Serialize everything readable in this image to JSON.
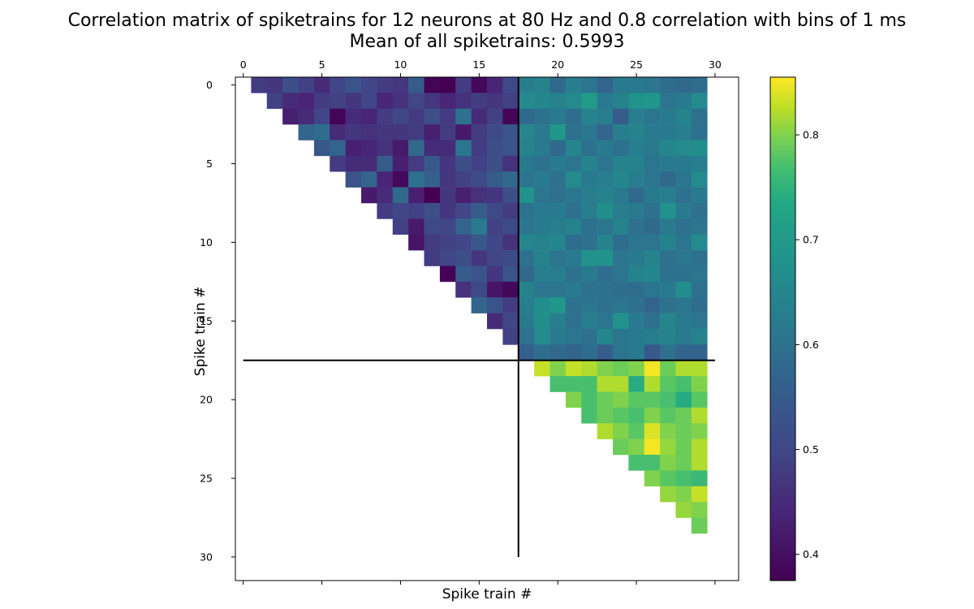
{
  "chart_data": {
    "type": "heatmap",
    "title": "Correlation matrix of spiketrains for 12 neurons at 80 Hz and 0.8 correlation with bins of 1 ms",
    "subtitle": "Mean of all spiketrains: 0.5993",
    "xlabel": "Spike train #",
    "ylabel": "Spike train #",
    "matrix_size": 30,
    "x_tick_labels": [
      "0",
      "5",
      "10",
      "15",
      "20",
      "25",
      "30"
    ],
    "y_tick_labels": [
      "0",
      "5",
      "10",
      "15",
      "20",
      "25",
      "30"
    ],
    "tick_values": [
      0,
      5,
      10,
      15,
      20,
      25,
      30
    ],
    "x_ticks_position": "top",
    "xlim": [
      -0.5,
      31.5
    ],
    "ylim": [
      31.5,
      -0.5
    ],
    "colorscale": "viridis",
    "colorbar": {
      "range": [
        0.375,
        0.855
      ],
      "tick_values": [
        0.4,
        0.5,
        0.6,
        0.7,
        0.8
      ],
      "tick_labels": [
        "0.4",
        "0.5",
        "0.6",
        "0.7",
        "0.8"
      ]
    },
    "separator_lines": [
      {
        "orientation": "vertical",
        "x": 17.5,
        "from": -0.5,
        "to": 30
      },
      {
        "orientation": "horizontal",
        "y": 17.5,
        "from": 0,
        "to": 30
      }
    ],
    "cells": {
      "description_groups": [
        "within group A (upper triangle)",
        "between groups",
        "within group B (upper triangle)"
      ],
      "rows": [
        {
          "row": 0,
          "values": [
            null,
            0.48,
            0.47,
            0.52,
            0.49,
            0.45,
            0.5,
            0.53,
            0.5,
            0.48,
            0.47,
            0.55,
            0.38,
            0.37,
            0.48,
            0.39,
            0.44,
            0.51,
            0.63,
            0.64,
            0.58,
            0.63,
            0.61,
            0.57,
            0.62,
            0.62,
            0.61,
            0.59,
            0.58,
            0.59
          ]
        },
        {
          "row": 1,
          "values": [
            null,
            null,
            0.49,
            0.45,
            0.44,
            0.48,
            0.49,
            0.47,
            0.5,
            0.44,
            0.46,
            0.5,
            0.47,
            0.44,
            0.46,
            0.48,
            0.47,
            0.49,
            0.66,
            0.65,
            0.64,
            0.66,
            0.7,
            0.62,
            0.64,
            0.68,
            0.69,
            0.61,
            0.62,
            0.66
          ]
        },
        {
          "row": 2,
          "values": [
            null,
            null,
            null,
            0.43,
            0.45,
            0.5,
            0.38,
            0.45,
            0.44,
            0.48,
            0.5,
            0.48,
            0.52,
            0.48,
            0.6,
            0.45,
            0.49,
            0.38,
            0.58,
            0.6,
            0.62,
            0.59,
            0.64,
            0.63,
            0.55,
            0.63,
            0.61,
            0.62,
            0.64,
            0.6
          ]
        },
        {
          "row": 3,
          "values": [
            null,
            null,
            null,
            null,
            0.57,
            0.59,
            0.45,
            0.47,
            0.46,
            0.47,
            0.47,
            0.48,
            0.43,
            0.48,
            0.42,
            0.48,
            0.51,
            0.53,
            0.65,
            0.62,
            0.69,
            0.6,
            0.61,
            0.57,
            0.63,
            0.64,
            0.62,
            0.62,
            0.63,
            0.6
          ]
        },
        {
          "row": 4,
          "values": [
            null,
            null,
            null,
            null,
            null,
            0.54,
            0.57,
            0.43,
            0.44,
            0.46,
            0.42,
            0.58,
            0.45,
            0.45,
            0.61,
            0.48,
            0.52,
            0.53,
            0.64,
            0.62,
            0.58,
            0.65,
            0.6,
            0.62,
            0.6,
            0.63,
            0.62,
            0.65,
            0.66,
            0.67
          ]
        },
        {
          "row": 5,
          "values": [
            null,
            null,
            null,
            null,
            null,
            null,
            0.48,
            0.45,
            0.45,
            0.55,
            0.43,
            0.48,
            0.54,
            0.47,
            0.52,
            0.49,
            0.52,
            0.46,
            0.62,
            0.6,
            0.62,
            0.61,
            0.64,
            0.61,
            0.64,
            0.64,
            0.61,
            0.62,
            0.62,
            0.63
          ]
        },
        {
          "row": 6,
          "values": [
            null,
            null,
            null,
            null,
            null,
            null,
            null,
            0.53,
            0.57,
            0.44,
            0.39,
            0.6,
            0.56,
            0.47,
            0.49,
            0.51,
            0.55,
            0.58,
            0.61,
            0.62,
            0.6,
            0.66,
            0.62,
            0.63,
            0.65,
            0.63,
            0.61,
            0.58,
            0.61,
            0.66
          ]
        },
        {
          "row": 7,
          "values": [
            null,
            null,
            null,
            null,
            null,
            null,
            null,
            null,
            0.42,
            0.45,
            0.58,
            0.43,
            0.37,
            0.47,
            0.43,
            0.46,
            0.47,
            0.52,
            0.68,
            0.61,
            0.6,
            0.61,
            0.63,
            0.64,
            0.62,
            0.58,
            0.62,
            0.63,
            0.6,
            0.62
          ]
        },
        {
          "row": 8,
          "values": [
            null,
            null,
            null,
            null,
            null,
            null,
            null,
            null,
            null,
            0.48,
            0.5,
            0.49,
            0.52,
            0.47,
            0.5,
            0.55,
            0.51,
            0.48,
            0.6,
            0.62,
            0.62,
            0.6,
            0.63,
            0.67,
            0.63,
            0.62,
            0.6,
            0.68,
            0.62,
            0.6
          ]
        },
        {
          "row": 9,
          "values": [
            null,
            null,
            null,
            null,
            null,
            null,
            null,
            null,
            null,
            null,
            0.49,
            0.42,
            0.51,
            0.5,
            0.57,
            0.62,
            0.49,
            0.51,
            0.61,
            0.62,
            0.63,
            0.64,
            0.6,
            0.61,
            0.64,
            0.6,
            0.58,
            0.62,
            0.6,
            0.61
          ]
        },
        {
          "row": 10,
          "values": [
            null,
            null,
            null,
            null,
            null,
            null,
            null,
            null,
            null,
            null,
            null,
            0.41,
            0.48,
            0.49,
            0.5,
            0.54,
            0.5,
            0.46,
            0.65,
            0.64,
            0.65,
            0.59,
            0.6,
            0.64,
            0.59,
            0.61,
            0.61,
            0.64,
            0.61,
            0.66
          ]
        },
        {
          "row": 11,
          "values": [
            null,
            null,
            null,
            null,
            null,
            null,
            null,
            null,
            null,
            null,
            null,
            null,
            0.48,
            0.5,
            0.52,
            0.47,
            0.5,
            0.51,
            0.6,
            0.64,
            0.61,
            0.62,
            0.68,
            0.68,
            0.61,
            0.62,
            0.64,
            0.6,
            0.61,
            0.6
          ]
        },
        {
          "row": 12,
          "values": [
            null,
            null,
            null,
            null,
            null,
            null,
            null,
            null,
            null,
            null,
            null,
            null,
            null,
            0.38,
            0.55,
            0.53,
            0.47,
            0.53,
            0.58,
            0.63,
            0.63,
            0.6,
            0.62,
            0.59,
            0.61,
            0.64,
            0.65,
            0.6,
            0.6,
            0.61
          ]
        },
        {
          "row": 13,
          "values": [
            null,
            null,
            null,
            null,
            null,
            null,
            null,
            null,
            null,
            null,
            null,
            null,
            null,
            null,
            0.46,
            0.51,
            0.41,
            0.39,
            0.64,
            0.61,
            0.61,
            0.62,
            0.6,
            0.6,
            0.59,
            0.59,
            0.61,
            0.62,
            0.67,
            0.6
          ]
        },
        {
          "row": 14,
          "values": [
            null,
            null,
            null,
            null,
            null,
            null,
            null,
            null,
            null,
            null,
            null,
            null,
            null,
            null,
            null,
            0.57,
            0.53,
            0.48,
            0.63,
            0.67,
            0.69,
            0.6,
            0.61,
            0.6,
            0.61,
            0.6,
            0.57,
            0.6,
            0.61,
            0.59
          ]
        },
        {
          "row": 15,
          "values": [
            null,
            null,
            null,
            null,
            null,
            null,
            null,
            null,
            null,
            null,
            null,
            null,
            null,
            null,
            null,
            null,
            0.45,
            0.5,
            0.62,
            0.67,
            0.63,
            0.6,
            0.63,
            0.61,
            0.68,
            0.62,
            0.6,
            0.65,
            0.62,
            0.61
          ]
        },
        {
          "row": 16,
          "values": [
            null,
            null,
            null,
            null,
            null,
            null,
            null,
            null,
            null,
            null,
            null,
            null,
            null,
            null,
            null,
            null,
            null,
            0.49,
            0.6,
            0.66,
            0.62,
            0.61,
            0.6,
            0.65,
            0.61,
            0.62,
            0.63,
            0.64,
            0.62,
            0.64
          ]
        },
        {
          "row": 17,
          "values": [
            null,
            null,
            null,
            null,
            null,
            null,
            null,
            null,
            null,
            null,
            null,
            null,
            null,
            null,
            null,
            null,
            null,
            null,
            0.56,
            0.59,
            0.58,
            0.57,
            0.59,
            0.55,
            0.61,
            0.62,
            0.54,
            0.6,
            0.57,
            0.57
          ]
        },
        {
          "row": 18,
          "values": [
            null,
            null,
            null,
            null,
            null,
            null,
            null,
            null,
            null,
            null,
            null,
            null,
            null,
            null,
            null,
            null,
            null,
            null,
            null,
            0.83,
            0.8,
            0.83,
            0.82,
            0.8,
            0.79,
            0.8,
            0.85,
            0.79,
            0.82,
            0.82
          ]
        },
        {
          "row": 19,
          "values": [
            null,
            null,
            null,
            null,
            null,
            null,
            null,
            null,
            null,
            null,
            null,
            null,
            null,
            null,
            null,
            null,
            null,
            null,
            null,
            null,
            0.77,
            0.77,
            0.77,
            0.82,
            0.82,
            0.74,
            0.82,
            0.78,
            0.77,
            0.8
          ]
        },
        {
          "row": 20,
          "values": [
            null,
            null,
            null,
            null,
            null,
            null,
            null,
            null,
            null,
            null,
            null,
            null,
            null,
            null,
            null,
            null,
            null,
            null,
            null,
            null,
            null,
            0.8,
            0.77,
            0.79,
            0.8,
            0.78,
            0.78,
            0.77,
            0.74,
            0.78
          ]
        },
        {
          "row": 21,
          "values": [
            null,
            null,
            null,
            null,
            null,
            null,
            null,
            null,
            null,
            null,
            null,
            null,
            null,
            null,
            null,
            null,
            null,
            null,
            null,
            null,
            null,
            null,
            0.77,
            0.79,
            0.78,
            0.77,
            0.8,
            0.78,
            0.79,
            0.82
          ]
        },
        {
          "row": 22,
          "values": [
            null,
            null,
            null,
            null,
            null,
            null,
            null,
            null,
            null,
            null,
            null,
            null,
            null,
            null,
            null,
            null,
            null,
            null,
            null,
            null,
            null,
            null,
            null,
            0.82,
            0.8,
            0.78,
            0.84,
            0.8,
            0.79,
            0.8
          ]
        },
        {
          "row": 23,
          "values": [
            null,
            null,
            null,
            null,
            null,
            null,
            null,
            null,
            null,
            null,
            null,
            null,
            null,
            null,
            null,
            null,
            null,
            null,
            null,
            null,
            null,
            null,
            null,
            null,
            0.79,
            0.8,
            0.85,
            0.81,
            0.79,
            0.82
          ]
        },
        {
          "row": 24,
          "values": [
            null,
            null,
            null,
            null,
            null,
            null,
            null,
            null,
            null,
            null,
            null,
            null,
            null,
            null,
            null,
            null,
            null,
            null,
            null,
            null,
            null,
            null,
            null,
            null,
            null,
            0.77,
            0.77,
            0.8,
            0.79,
            0.82
          ]
        },
        {
          "row": 25,
          "values": [
            null,
            null,
            null,
            null,
            null,
            null,
            null,
            null,
            null,
            null,
            null,
            null,
            null,
            null,
            null,
            null,
            null,
            null,
            null,
            null,
            null,
            null,
            null,
            null,
            null,
            null,
            0.8,
            0.78,
            0.77,
            0.76
          ]
        },
        {
          "row": 26,
          "values": [
            null,
            null,
            null,
            null,
            null,
            null,
            null,
            null,
            null,
            null,
            null,
            null,
            null,
            null,
            null,
            null,
            null,
            null,
            null,
            null,
            null,
            null,
            null,
            null,
            null,
            null,
            null,
            0.81,
            0.8,
            0.83
          ]
        },
        {
          "row": 27,
          "values": [
            null,
            null,
            null,
            null,
            null,
            null,
            null,
            null,
            null,
            null,
            null,
            null,
            null,
            null,
            null,
            null,
            null,
            null,
            null,
            null,
            null,
            null,
            null,
            null,
            null,
            null,
            null,
            null,
            0.81,
            0.8
          ]
        },
        {
          "row": 28,
          "values": [
            null,
            null,
            null,
            null,
            null,
            null,
            null,
            null,
            null,
            null,
            null,
            null,
            null,
            null,
            null,
            null,
            null,
            null,
            null,
            null,
            null,
            null,
            null,
            null,
            null,
            null,
            null,
            null,
            null,
            0.79
          ]
        },
        {
          "row": 29,
          "values": [
            null,
            null,
            null,
            null,
            null,
            null,
            null,
            null,
            null,
            null,
            null,
            null,
            null,
            null,
            null,
            null,
            null,
            null,
            null,
            null,
            null,
            null,
            null,
            null,
            null,
            null,
            null,
            null,
            null,
            null
          ]
        }
      ]
    }
  }
}
